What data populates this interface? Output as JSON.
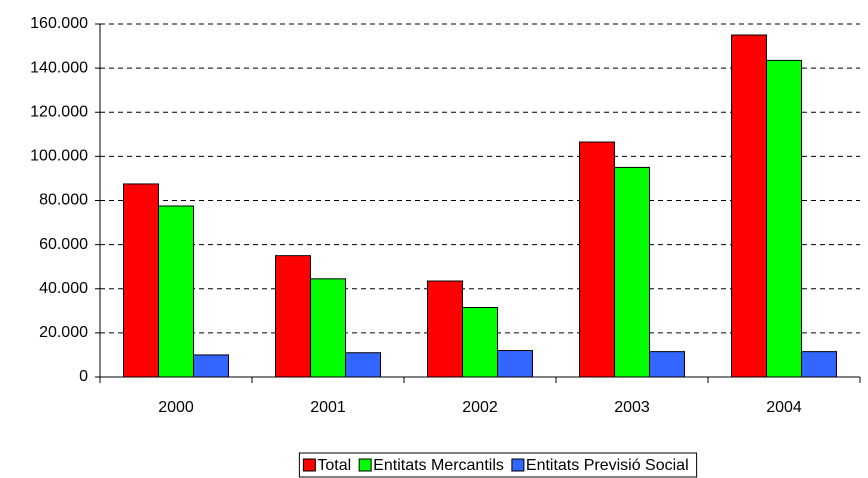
{
  "chart_data": {
    "type": "bar",
    "categories": [
      "2000",
      "2001",
      "2002",
      "2003",
      "2004"
    ],
    "series": [
      {
        "name": "Total",
        "color": "#ff0000",
        "values": [
          87500,
          55000,
          43500,
          106500,
          155000
        ]
      },
      {
        "name": "Entitats Mercantils",
        "color": "#00ff00",
        "values": [
          77500,
          44500,
          31500,
          95000,
          143500
        ]
      },
      {
        "name": "Entitats Previsió Social",
        "color": "#3366ff",
        "values": [
          10000,
          11000,
          12000,
          11500,
          11500
        ]
      }
    ],
    "ylim": [
      0,
      160000
    ],
    "yticks": [
      0,
      {
        "value": 20000,
        "label": "20.000"
      },
      {
        "value": 40000,
        "label": "40.000"
      },
      {
        "value": 60000,
        "label": "60.000"
      },
      {
        "value": 80000,
        "label": "80.000"
      },
      {
        "value": 100000,
        "label": "100.000"
      },
      {
        "value": 120000,
        "label": "120.000"
      },
      {
        "value": 140000,
        "label": "140.000"
      },
      {
        "value": 160000,
        "label": "160.000"
      }
    ],
    "grid": true,
    "legend": "bottom"
  }
}
